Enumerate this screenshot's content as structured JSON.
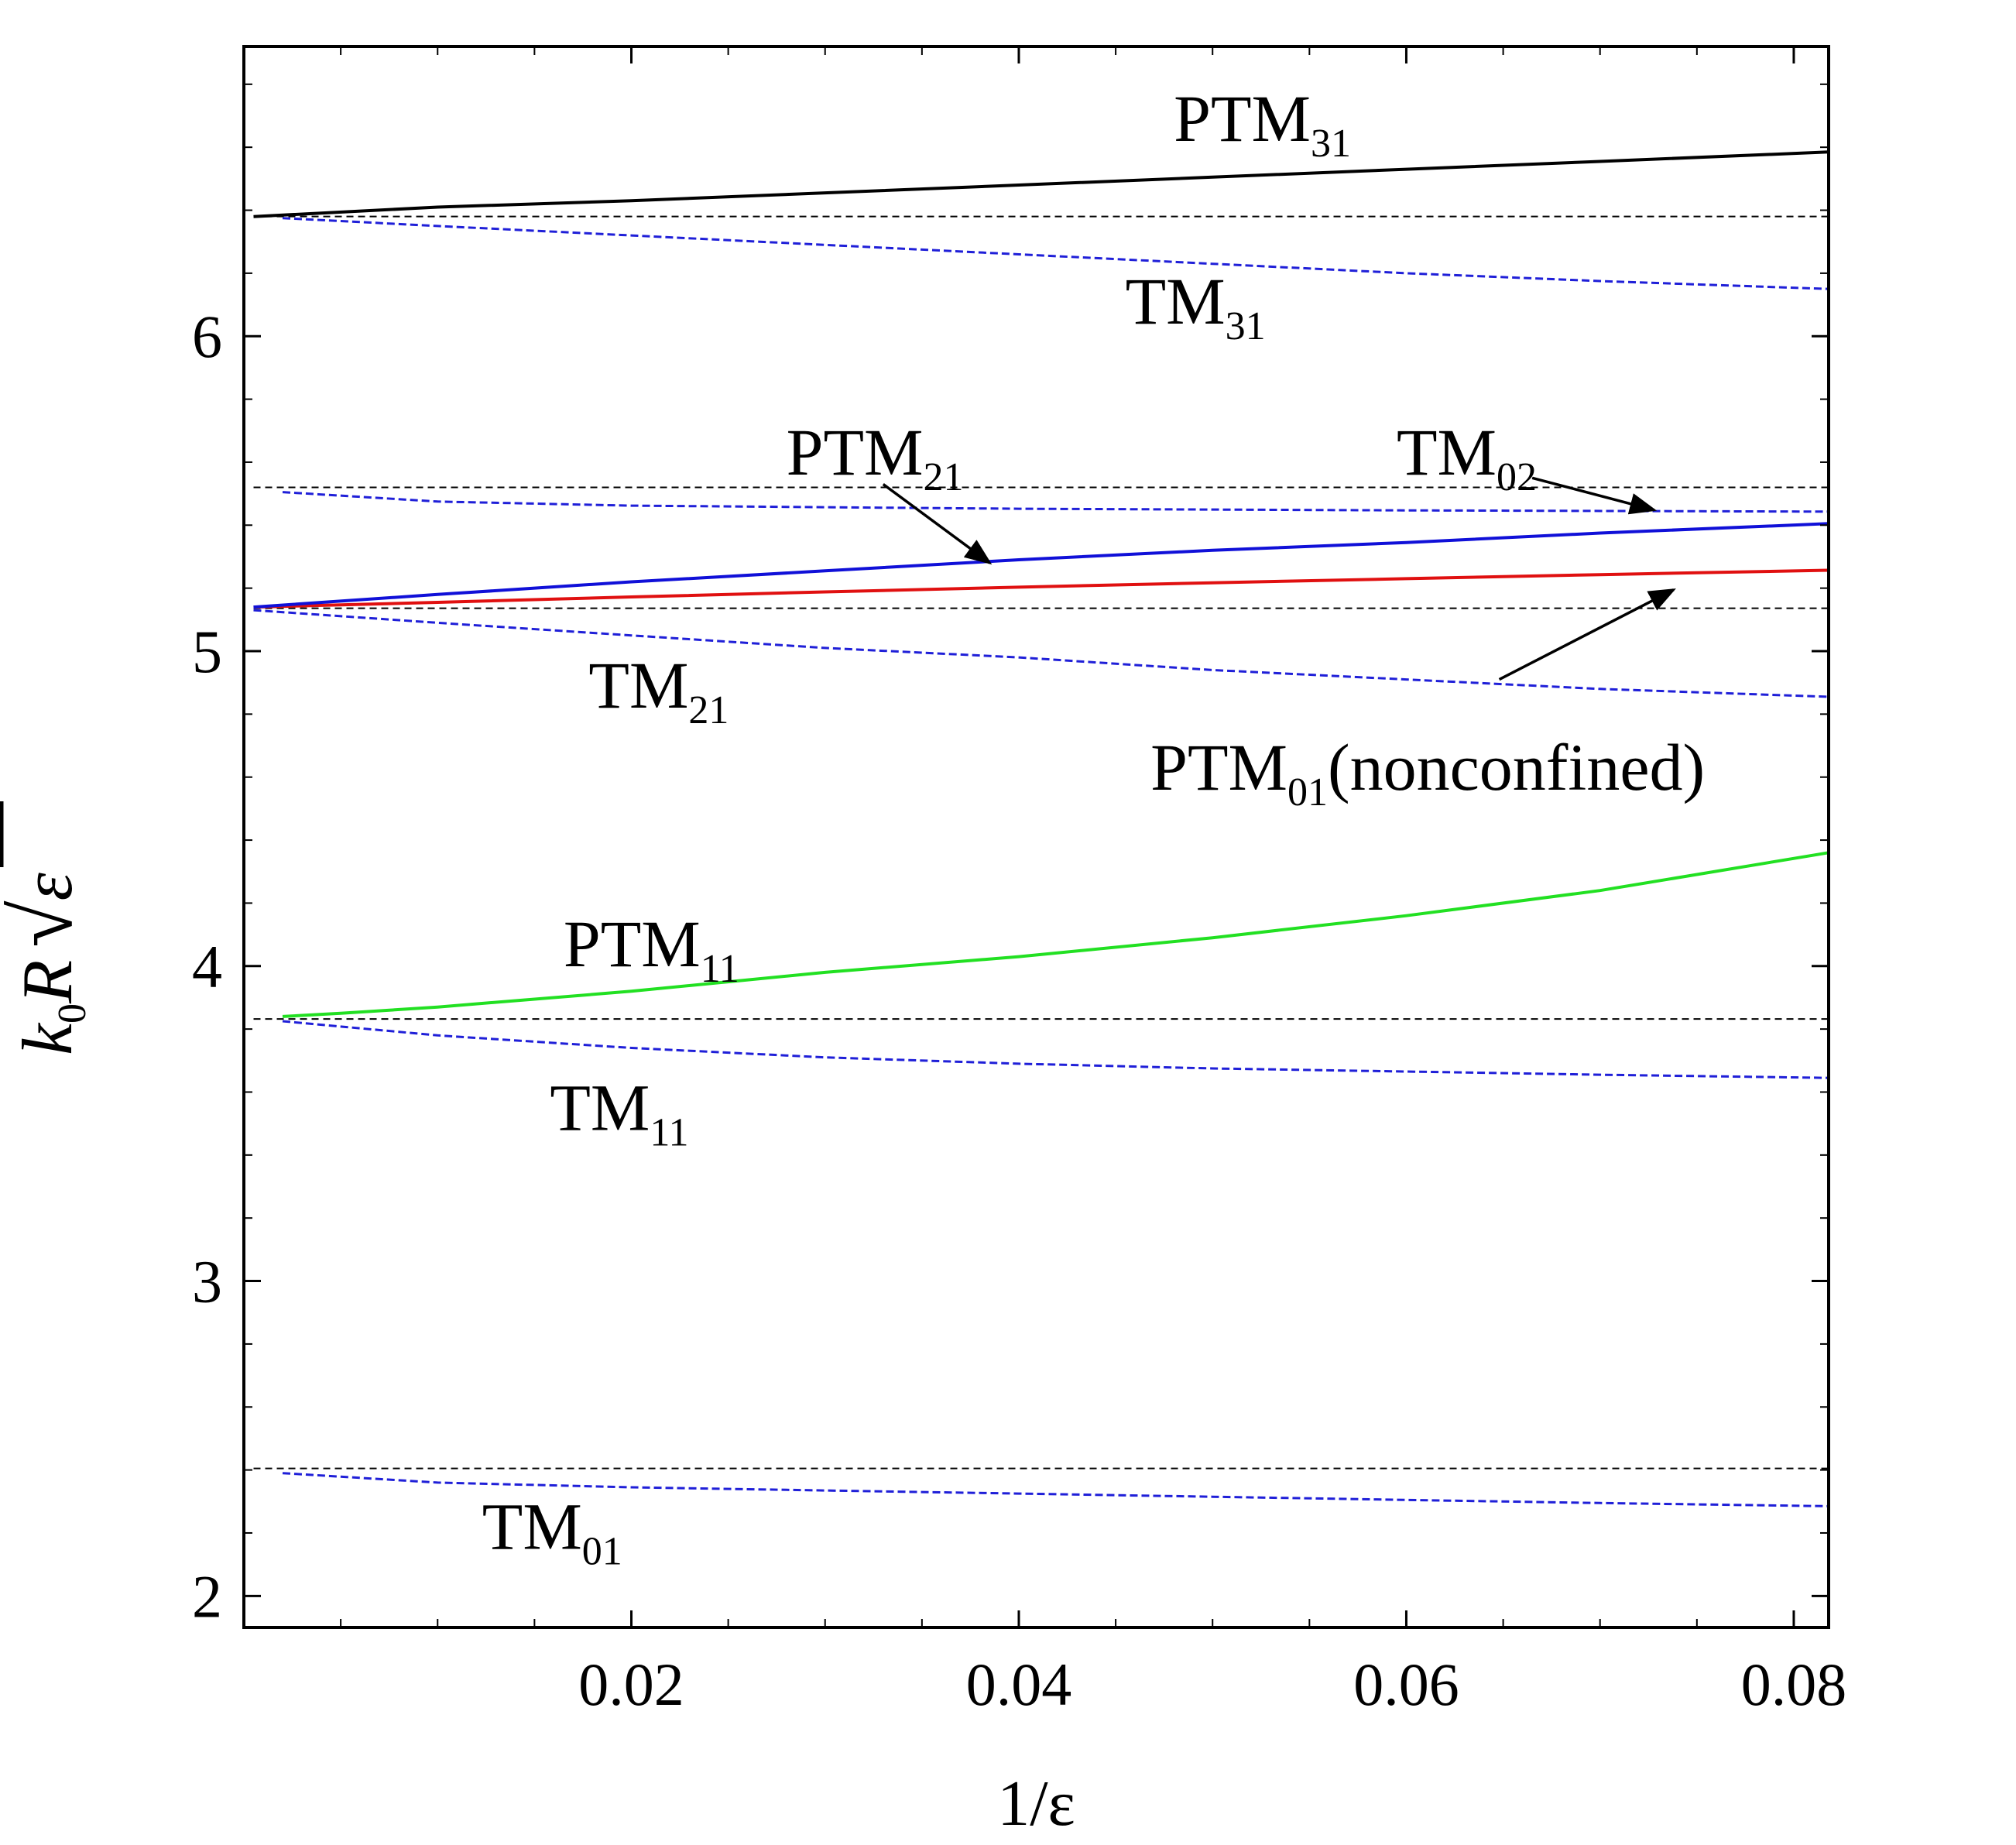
{
  "chart_data": {
    "type": "line",
    "title": "",
    "xlabel": "1/ε",
    "ylabel": {
      "k": "k",
      "k_sub": "0",
      "R": "R",
      "radical": "√",
      "eps": "ε"
    },
    "xlim": [
      0.0,
      0.0818
    ],
    "ylim": [
      1.9,
      6.92
    ],
    "x_ticks": [
      0.02,
      0.04,
      0.06,
      0.08
    ],
    "x_tick_labels": [
      "0.02",
      "0.04",
      "0.06",
      "0.08"
    ],
    "y_ticks": [
      2,
      3,
      4,
      5,
      6
    ],
    "y_tick_labels": [
      "2",
      "3",
      "4",
      "5",
      "6"
    ],
    "grid": false,
    "reference_lines": {
      "color": "#000000",
      "style": "dashed",
      "x_range": [
        0.0005,
        0.0818
      ],
      "values": [
        2.405,
        3.832,
        5.136,
        5.52,
        6.38
      ]
    },
    "series": [
      {
        "name": "TM01",
        "color": "#1f1fd8",
        "style": "dashed",
        "x": [
          0.002,
          0.01,
          0.02,
          0.03,
          0.04,
          0.05,
          0.06,
          0.07,
          0.0818
        ],
        "y": [
          2.39,
          2.36,
          2.345,
          2.335,
          2.325,
          2.315,
          2.305,
          2.295,
          2.285
        ]
      },
      {
        "name": "TM11",
        "color": "#1f1fd8",
        "style": "dashed",
        "x": [
          0.002,
          0.01,
          0.02,
          0.03,
          0.04,
          0.05,
          0.06,
          0.07,
          0.0818
        ],
        "y": [
          3.825,
          3.78,
          3.74,
          3.71,
          3.69,
          3.675,
          3.665,
          3.655,
          3.645
        ]
      },
      {
        "name": "TM21",
        "color": "#1f1fd8",
        "style": "dashed",
        "x": [
          0.0005,
          0.01,
          0.02,
          0.03,
          0.04,
          0.05,
          0.06,
          0.07,
          0.0818
        ],
        "y": [
          5.13,
          5.09,
          5.05,
          5.01,
          4.98,
          4.94,
          4.91,
          4.88,
          4.855
        ]
      },
      {
        "name": "TM02",
        "color": "#1f1fd8",
        "style": "dashed",
        "x": [
          0.002,
          0.01,
          0.02,
          0.04,
          0.06,
          0.0818
        ],
        "y": [
          5.505,
          5.475,
          5.462,
          5.452,
          5.447,
          5.443
        ]
      },
      {
        "name": "TM31",
        "color": "#1f1fd8",
        "style": "dashed",
        "x": [
          0.002,
          0.01,
          0.02,
          0.03,
          0.04,
          0.05,
          0.06,
          0.07,
          0.0818
        ],
        "y": [
          6.375,
          6.35,
          6.32,
          6.29,
          6.26,
          6.23,
          6.2,
          6.175,
          6.15
        ]
      },
      {
        "name": "PTM01(nonconfined)",
        "color": "#e01010",
        "style": "solid",
        "x": [
          0.0005,
          0.01,
          0.02,
          0.03,
          0.04,
          0.05,
          0.06,
          0.07,
          0.0818
        ],
        "y": [
          5.14,
          5.155,
          5.172,
          5.188,
          5.203,
          5.217,
          5.23,
          5.243,
          5.257
        ]
      },
      {
        "name": "PTM21",
        "color": "#1010d8",
        "style": "solid",
        "x": [
          0.0005,
          0.01,
          0.02,
          0.03,
          0.04,
          0.05,
          0.06,
          0.07,
          0.0818
        ],
        "y": [
          5.14,
          5.18,
          5.22,
          5.255,
          5.29,
          5.32,
          5.345,
          5.375,
          5.405
        ]
      },
      {
        "name": "PTM11",
        "color": "#22e022",
        "style": "solid",
        "x": [
          0.002,
          0.005,
          0.01,
          0.02,
          0.03,
          0.04,
          0.05,
          0.06,
          0.07,
          0.0818
        ],
        "y": [
          3.84,
          3.85,
          3.87,
          3.92,
          3.98,
          4.03,
          4.09,
          4.16,
          4.24,
          4.36
        ]
      },
      {
        "name": "PTM31",
        "color": "#000000",
        "style": "solid",
        "x": [
          0.0005,
          0.01,
          0.02,
          0.03,
          0.04,
          0.05,
          0.06,
          0.07,
          0.0818
        ],
        "y": [
          6.38,
          6.41,
          6.43,
          6.455,
          6.48,
          6.505,
          6.53,
          6.555,
          6.585
        ]
      }
    ],
    "annotations": [
      {
        "base": "PTM",
        "sub": "31",
        "suffix": "",
        "at": [
          0.048,
          6.62
        ]
      },
      {
        "base": "TM",
        "sub": "31",
        "suffix": "",
        "at": [
          0.0455,
          6.04
        ]
      },
      {
        "base": "PTM",
        "sub": "21",
        "suffix": "",
        "at": [
          0.028,
          5.56
        ]
      },
      {
        "base": "TM",
        "sub": "02",
        "suffix": "",
        "at": [
          0.0595,
          5.56
        ]
      },
      {
        "base": "TM",
        "sub": "21",
        "suffix": "",
        "at": [
          0.0178,
          4.82
        ]
      },
      {
        "base": "PTM",
        "sub": "01",
        "suffix": "(nonconfined)",
        "at": [
          0.0468,
          4.56
        ]
      },
      {
        "base": "PTM",
        "sub": "11",
        "suffix": "",
        "at": [
          0.0165,
          4.0
        ]
      },
      {
        "base": "TM",
        "sub": "11",
        "suffix": "",
        "at": [
          0.0158,
          3.48
        ]
      },
      {
        "base": "TM",
        "sub": "01",
        "suffix": "",
        "at": [
          0.0123,
          2.15
        ]
      }
    ],
    "arrows": [
      {
        "from": [
          0.033,
          5.53
        ],
        "to": [
          0.0385,
          5.28
        ]
      },
      {
        "from": [
          0.0665,
          5.55
        ],
        "to": [
          0.0728,
          5.448
        ]
      },
      {
        "from": [
          0.0648,
          4.91
        ],
        "to": [
          0.0738,
          5.195
        ]
      }
    ]
  }
}
